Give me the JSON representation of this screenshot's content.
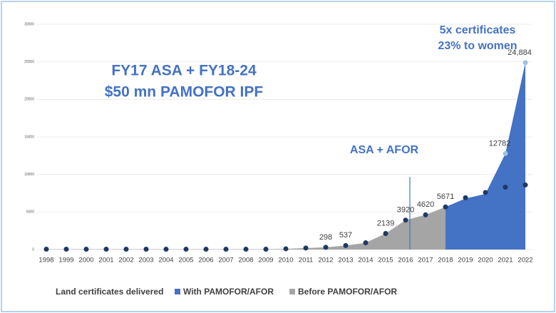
{
  "chart_data": {
    "type": "area",
    "annotations": [
      "FY17 ASA + FY18-24",
      "$50 mn PAMOFOR IPF",
      "ASA + AFOR",
      "5x certificates",
      "23% to women"
    ],
    "legend_title": "Land certificates delivered",
    "x": [
      1998,
      1999,
      2000,
      2001,
      2002,
      2003,
      2004,
      2005,
      2006,
      2007,
      2008,
      2009,
      2010,
      2011,
      2012,
      2013,
      2014,
      2015,
      2016,
      2017,
      2018,
      2019,
      2020,
      2021,
      2022
    ],
    "series": [
      {
        "name": "With PAMOFOR/AFOR",
        "color": "#4472c4",
        "values": [
          null,
          null,
          null,
          null,
          null,
          null,
          null,
          null,
          null,
          null,
          null,
          null,
          null,
          null,
          null,
          null,
          null,
          null,
          null,
          null,
          5671,
          6800,
          7400,
          12782,
          24884
        ],
        "value_labels": [
          null,
          null,
          null,
          null,
          null,
          null,
          null,
          null,
          null,
          null,
          null,
          null,
          null,
          null,
          null,
          null,
          null,
          null,
          null,
          null,
          null,
          null,
          null,
          "12782",
          "24,884"
        ]
      },
      {
        "name": "Before PAMOFOR/AFOR",
        "color": "#a5a5a5",
        "values": [
          50,
          50,
          50,
          50,
          50,
          50,
          50,
          50,
          50,
          50,
          50,
          50,
          100,
          200,
          298,
          537,
          900,
          2139,
          3920,
          4620,
          5671,
          null,
          null,
          null,
          null
        ],
        "value_labels": [
          null,
          null,
          null,
          null,
          null,
          null,
          null,
          null,
          null,
          null,
          null,
          null,
          null,
          null,
          "298",
          "537",
          null,
          "2139",
          "3920",
          "4620",
          "5671",
          null,
          null,
          null,
          null
        ]
      }
    ],
    "markers": {
      "color": "#1f3864",
      "values": [
        50,
        50,
        50,
        50,
        50,
        50,
        50,
        50,
        50,
        50,
        50,
        50,
        100,
        200,
        298,
        537,
        900,
        2139,
        3920,
        4620,
        5671,
        6900,
        7600,
        8300,
        8600
      ]
    },
    "ylim": [
      0,
      30000
    ],
    "yticks": [
      0,
      5000,
      10000,
      15000,
      20000,
      25000,
      30000
    ],
    "grid": true
  }
}
